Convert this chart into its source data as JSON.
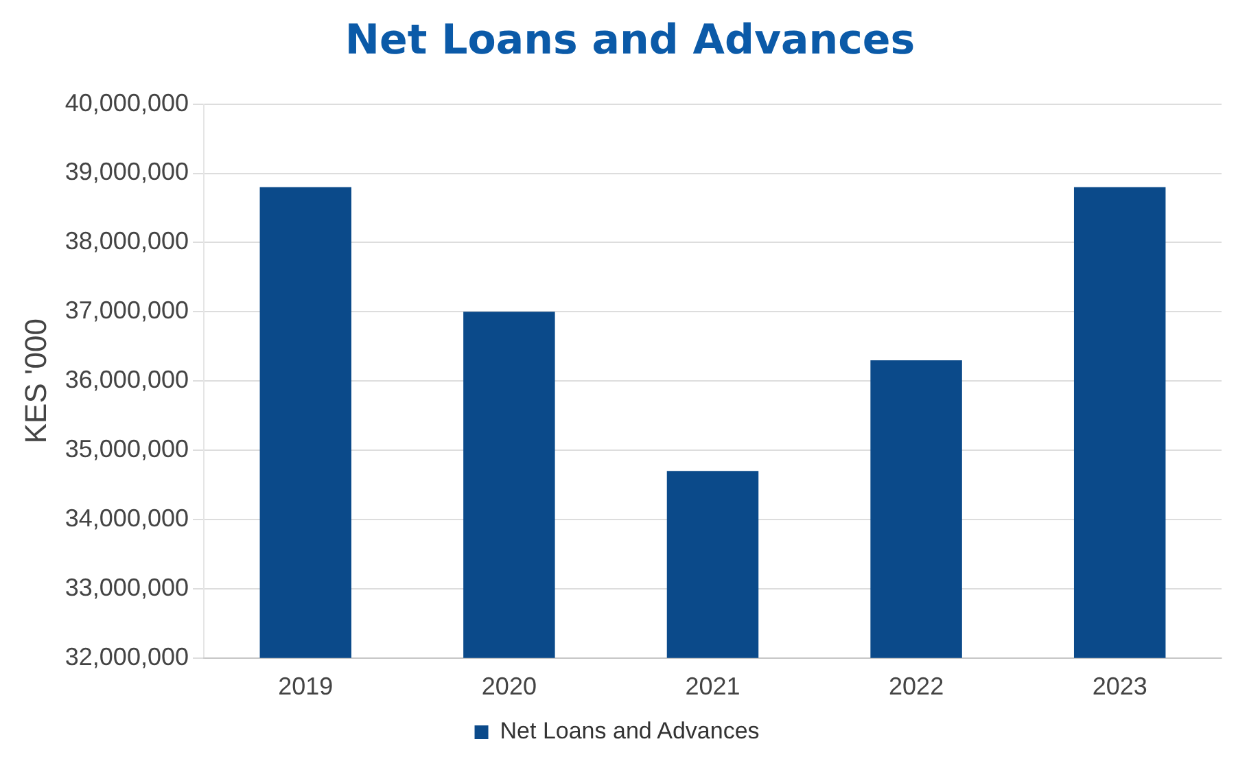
{
  "chart_data": {
    "type": "bar",
    "title": "Net Loans and Advances",
    "ylabel": "KES '000",
    "categories": [
      "2019",
      "2020",
      "2021",
      "2022",
      "2023"
    ],
    "series": [
      {
        "name": "Net Loans and Advances",
        "color": "#0b4a8a",
        "values": [
          38800000,
          37000000,
          34700000,
          36300000,
          38800000
        ]
      }
    ],
    "ylim": [
      32000000,
      40000000
    ],
    "yticks": [
      {
        "value": 32000000,
        "label": "32,000,000"
      },
      {
        "value": 33000000,
        "label": "33,000,000"
      },
      {
        "value": 34000000,
        "label": "34,000,000"
      },
      {
        "value": 35000000,
        "label": "35,000,000"
      },
      {
        "value": 36000000,
        "label": "36,000,000"
      },
      {
        "value": 37000000,
        "label": "37,000,000"
      },
      {
        "value": 38000000,
        "label": "38,000,000"
      },
      {
        "value": 39000000,
        "label": "39,000,000"
      },
      {
        "value": 40000000,
        "label": "40,000,000"
      }
    ],
    "grid": "y",
    "legend": "bottom"
  }
}
